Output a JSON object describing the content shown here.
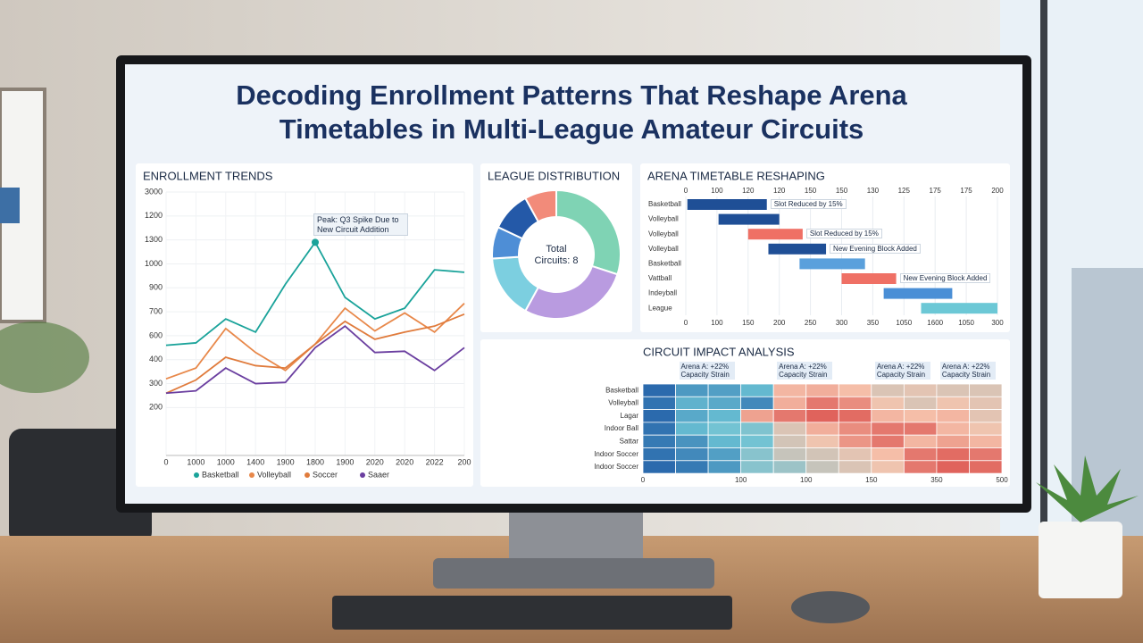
{
  "title": "Decoding Enrollment Patterns That Reshape Arena Timetables in Multi-League Amateur Circuits",
  "chart_data": [
    {
      "type": "line",
      "title": "ENROLLMENT TRENDS",
      "categories": [
        "0",
        "1000",
        "1000",
        "1400",
        "1900",
        "1800",
        "1900",
        "2020",
        "2020",
        "2022",
        "200"
      ],
      "series": [
        {
          "name": "Basketball",
          "color": "#1aa39a",
          "values": [
            460,
            470,
            570,
            515,
            715,
            890,
            660,
            570,
            615,
            775,
            765
          ]
        },
        {
          "name": "Volleyball",
          "color": "#e8884a",
          "values": [
            320,
            365,
            530,
            430,
            355,
            465,
            615,
            520,
            595,
            515,
            635
          ]
        },
        {
          "name": "Soccer",
          "color": "#e07b3c",
          "values": [
            260,
            315,
            410,
            375,
            365,
            465,
            560,
            485,
            515,
            540,
            590
          ]
        },
        {
          "name": "Saaer",
          "color": "#6b3fa0",
          "values": [
            260,
            270,
            365,
            300,
            305,
            450,
            540,
            430,
            435,
            355,
            450
          ]
        }
      ],
      "annotation": "Peak: Q3 Spike Due to New Circuit Addition",
      "ylim": [
        0,
        1100
      ],
      "yticks": [
        200,
        300,
        400,
        {
          "value": 500,
          "label": "600"
        },
        {
          "value": 600,
          "label": "700"
        },
        {
          "value": 700,
          "label": "900"
        },
        {
          "value": 800,
          "label": "1000"
        },
        {
          "value": 900,
          "label": "1300"
        },
        {
          "value": 1000,
          "label": "1200"
        },
        {
          "value": 1100,
          "label": "3000"
        }
      ],
      "grid": true
    },
    {
      "type": "pie",
      "title": "LEAGUE DISTRIBUTION",
      "center_label": "Total Circuits: 8",
      "values": [
        30,
        28,
        16,
        8,
        10,
        8
      ],
      "colors": [
        "#7fd3b4",
        "#b99be0",
        "#7ccfe0",
        "#4e8ed6",
        "#2459a8",
        "#f28b7a"
      ]
    },
    {
      "type": "gantt",
      "title": "ARENA TIMETABLE RESHAPING",
      "categories": [
        "Basketball",
        "Volleyball",
        "Volleyball",
        "Volleyball",
        "Basketball",
        "Vattball",
        "Indeyball",
        "League"
      ],
      "starts": [
        1,
        21,
        40,
        53,
        73,
        100,
        127,
        151
      ],
      "ends": [
        52,
        60,
        75,
        90,
        115,
        135,
        171,
        200
      ],
      "colors": [
        "#1f4f96",
        "#1f4f96",
        "#ef7065",
        "#1f4f96",
        "#5aa0dc",
        "#ef7065",
        "#4a8fd6",
        "#6cc8d6"
      ],
      "bar_labels": [
        "Slot Reduced by 15%",
        null,
        "Slot Reduced by 15%",
        "New Evening Block Added",
        null,
        "New Evening Block Added",
        null,
        null
      ],
      "xlim": [
        0,
        200
      ],
      "xticks": [
        0,
        {
          "value": 20,
          "label": "100"
        },
        {
          "value": 40,
          "label": "120"
        },
        {
          "value": 60,
          "label": "120"
        },
        {
          "value": 80,
          "label": "150"
        },
        {
          "value": 100,
          "label": "150"
        },
        {
          "value": 120,
          "label": "130"
        },
        {
          "value": 140,
          "label": "125"
        },
        {
          "value": 160,
          "label": "175"
        },
        {
          "value": 180,
          "label": "175"
        },
        200
      ],
      "x2ticks": [
        0,
        {
          "value": 20,
          "label": "100"
        },
        {
          "value": 40,
          "label": "150"
        },
        {
          "value": 60,
          "label": "200"
        },
        {
          "value": 80,
          "label": "250"
        },
        {
          "value": 100,
          "label": "300"
        },
        {
          "value": 120,
          "label": "350"
        },
        {
          "value": 140,
          "label": "1050"
        },
        {
          "value": 160,
          "label": "1600"
        },
        {
          "value": 180,
          "label": "1050"
        },
        {
          "value": 200,
          "label": "300"
        }
      ],
      "grid": true
    },
    {
      "type": "heatmap",
      "title": "CIRCUIT IMPACT ANALYSIS",
      "rows": [
        "Basketball",
        "Volleyball",
        "Lagar",
        "Indoor Ball",
        "Sattar",
        "Indoor Soccer",
        "Indoor Soccer"
      ],
      "values": [
        [
          5,
          20,
          22,
          30,
          70,
          72,
          68,
          60,
          62,
          60,
          60
        ],
        [
          8,
          28,
          25,
          15,
          72,
          85,
          80,
          65,
          60,
          65,
          62
        ],
        [
          5,
          25,
          30,
          75,
          85,
          90,
          88,
          70,
          68,
          70,
          62
        ],
        [
          8,
          30,
          35,
          38,
          60,
          72,
          80,
          85,
          85,
          70,
          65
        ],
        [
          10,
          18,
          30,
          35,
          58,
          65,
          78,
          85,
          70,
          75,
          70
        ],
        [
          8,
          15,
          22,
          40,
          55,
          58,
          62,
          68,
          85,
          88,
          85
        ],
        [
          5,
          10,
          20,
          40,
          45,
          55,
          60,
          65,
          85,
          90,
          88
        ]
      ],
      "column_labels": [
        null,
        "Arena A: +22% Capacity Strain",
        null,
        null,
        "Arena A: +22% Capacity Strain",
        null,
        null,
        "Arena A: +22% Capacity Strain",
        null,
        "Arena A: +22% Capacity Strain",
        null
      ],
      "colorscale": [
        "#1f5aa6",
        "#6cc3d5",
        "#f6c4ad",
        "#d63a3a"
      ],
      "clim": [
        0,
        100
      ],
      "xlim": [
        0,
        11
      ],
      "xticks": [
        0,
        {
          "value": 3,
          "label": "100"
        },
        {
          "value": 5,
          "label": "100"
        },
        {
          "value": 7,
          "label": "150"
        },
        {
          "value": 9,
          "label": "350"
        },
        {
          "value": 11,
          "label": "500"
        }
      ]
    }
  ]
}
